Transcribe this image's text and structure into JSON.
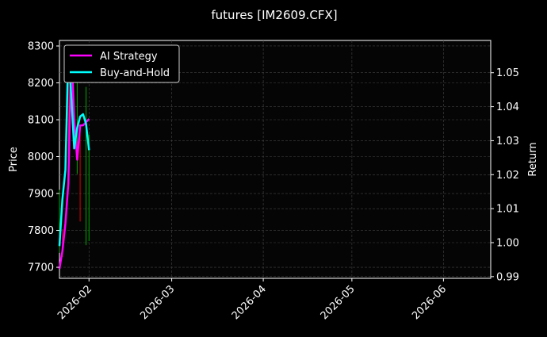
{
  "chart_data": {
    "type": "line",
    "title": "futures [IM2609.CFX]",
    "ylabel": "Price",
    "y2label": "Return",
    "ylim": [
      7670,
      8315
    ],
    "y2lim": [
      0.9895,
      1.0595
    ],
    "xlim": [
      "2026-01-22",
      "2026-06-17"
    ],
    "yticks": [
      7700,
      7800,
      7900,
      8000,
      8100,
      8200,
      8300
    ],
    "y2ticks": [
      "0.99",
      "1.00",
      "1.01",
      "1.02",
      "1.03",
      "1.04",
      "1.05"
    ],
    "xticks": [
      "2026-02",
      "2026-03",
      "2026-04",
      "2026-05",
      "2026-06"
    ],
    "xtick_dates": [
      "2026-02-01",
      "2026-03-01",
      "2026-04-01",
      "2026-05-01",
      "2026-06-01"
    ],
    "grid": true,
    "legend_placement": "top-left",
    "candles": [
      {
        "date": "2026-01-22",
        "high": 7910,
        "low": 7739,
        "color": "#00aa00"
      },
      {
        "date": "2026-01-23",
        "high": 7803,
        "low": 7728,
        "color": "#dd0000"
      },
      {
        "date": "2026-01-25",
        "high": 8274,
        "low": 7974,
        "color": "#dd0000"
      },
      {
        "date": "2026-01-28",
        "high": 8221,
        "low": 7953,
        "color": "#00aa00"
      },
      {
        "date": "2026-01-29",
        "high": 8081,
        "low": 7824,
        "color": "#dd0000"
      },
      {
        "date": "2026-01-31",
        "high": 8189,
        "low": 7760,
        "color": "#00aa00"
      },
      {
        "date": "2026-02-01",
        "high": 8060,
        "low": 7771,
        "color": "#00aa00"
      }
    ],
    "series": [
      {
        "name": "AI Strategy",
        "color": "#ff00ff",
        "axis": "right",
        "dates": [
          "2026-01-22",
          "2026-01-23",
          "2026-01-24",
          "2026-01-25",
          "2026-01-26",
          "2026-01-27",
          "2026-01-28",
          "2026-01-29",
          "2026-01-30",
          "2026-02-01"
        ],
        "values": [
          0.9923,
          0.9975,
          1.0056,
          1.0174,
          1.0573,
          1.0362,
          1.0244,
          1.0345,
          1.0345,
          1.0364
        ]
      },
      {
        "name": "Buy-and-Hold",
        "color": "#00ffff",
        "axis": "right",
        "dates": [
          "2026-01-22",
          "2026-01-23",
          "2026-01-24",
          "2026-01-25",
          "2026-01-26",
          "2026-01-27",
          "2026-01-28",
          "2026-01-29",
          "2026-01-30",
          "2026-01-31",
          "2026-02-01"
        ],
        "values": [
          0.999,
          1.0127,
          1.0214,
          1.0566,
          1.0432,
          1.0277,
          1.0338,
          1.0371,
          1.0378,
          1.035,
          1.0272
        ]
      }
    ]
  }
}
